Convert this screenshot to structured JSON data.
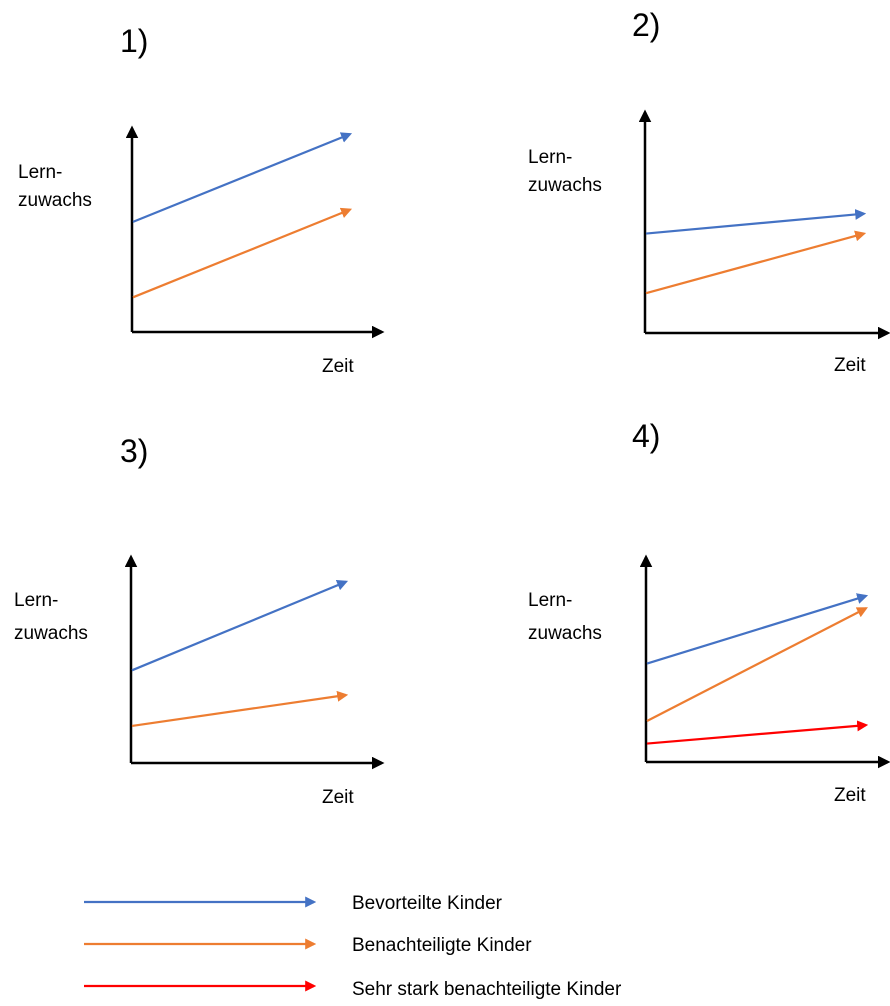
{
  "colors": {
    "bevorteilt": "#4472C4",
    "benachteiligt": "#ED7D31",
    "sehr_stark": "#FF0000",
    "axis": "#000000"
  },
  "panels": [
    {
      "number": "1)",
      "ylabel_line1": "Lern-",
      "ylabel_line2": "zuwachs",
      "xlabel": "Zeit",
      "lines": [
        {
          "series": "bevorteilt",
          "start": 0.54,
          "end": 0.97
        },
        {
          "series": "benachteiligt",
          "start": 0.17,
          "end": 0.6
        }
      ]
    },
    {
      "number": "2)",
      "ylabel_line1": "Lern-",
      "ylabel_line2": "zuwachs",
      "xlabel": "Zeit",
      "lines": [
        {
          "series": "bevorteilt",
          "start": 0.45,
          "end": 0.54
        },
        {
          "series": "benachteiligt",
          "start": 0.18,
          "end": 0.45
        }
      ]
    },
    {
      "number": "3)",
      "ylabel_line1": "Lern-",
      "ylabel_line2": "zuwachs",
      "xlabel": "Zeit",
      "lines": [
        {
          "series": "bevorteilt",
          "start": 0.45,
          "end": 0.88
        },
        {
          "series": "benachteiligt",
          "start": 0.18,
          "end": 0.33
        }
      ]
    },
    {
      "number": "4)",
      "ylabel_line1": "Lern-",
      "ylabel_line2": "zuwachs",
      "xlabel": "Zeit",
      "lines": [
        {
          "series": "bevorteilt",
          "start": 0.48,
          "end": 0.81
        },
        {
          "series": "benachteiligt",
          "start": 0.2,
          "end": 0.75
        },
        {
          "series": "sehr_stark",
          "start": 0.09,
          "end": 0.18
        }
      ]
    }
  ],
  "legend": [
    {
      "series": "bevorteilt",
      "label": "Bevorteilte Kinder"
    },
    {
      "series": "benachteiligt",
      "label": "Benachteiligte Kinder"
    },
    {
      "series": "sehr_stark",
      "label": "Sehr stark benachteiligte Kinder"
    }
  ]
}
